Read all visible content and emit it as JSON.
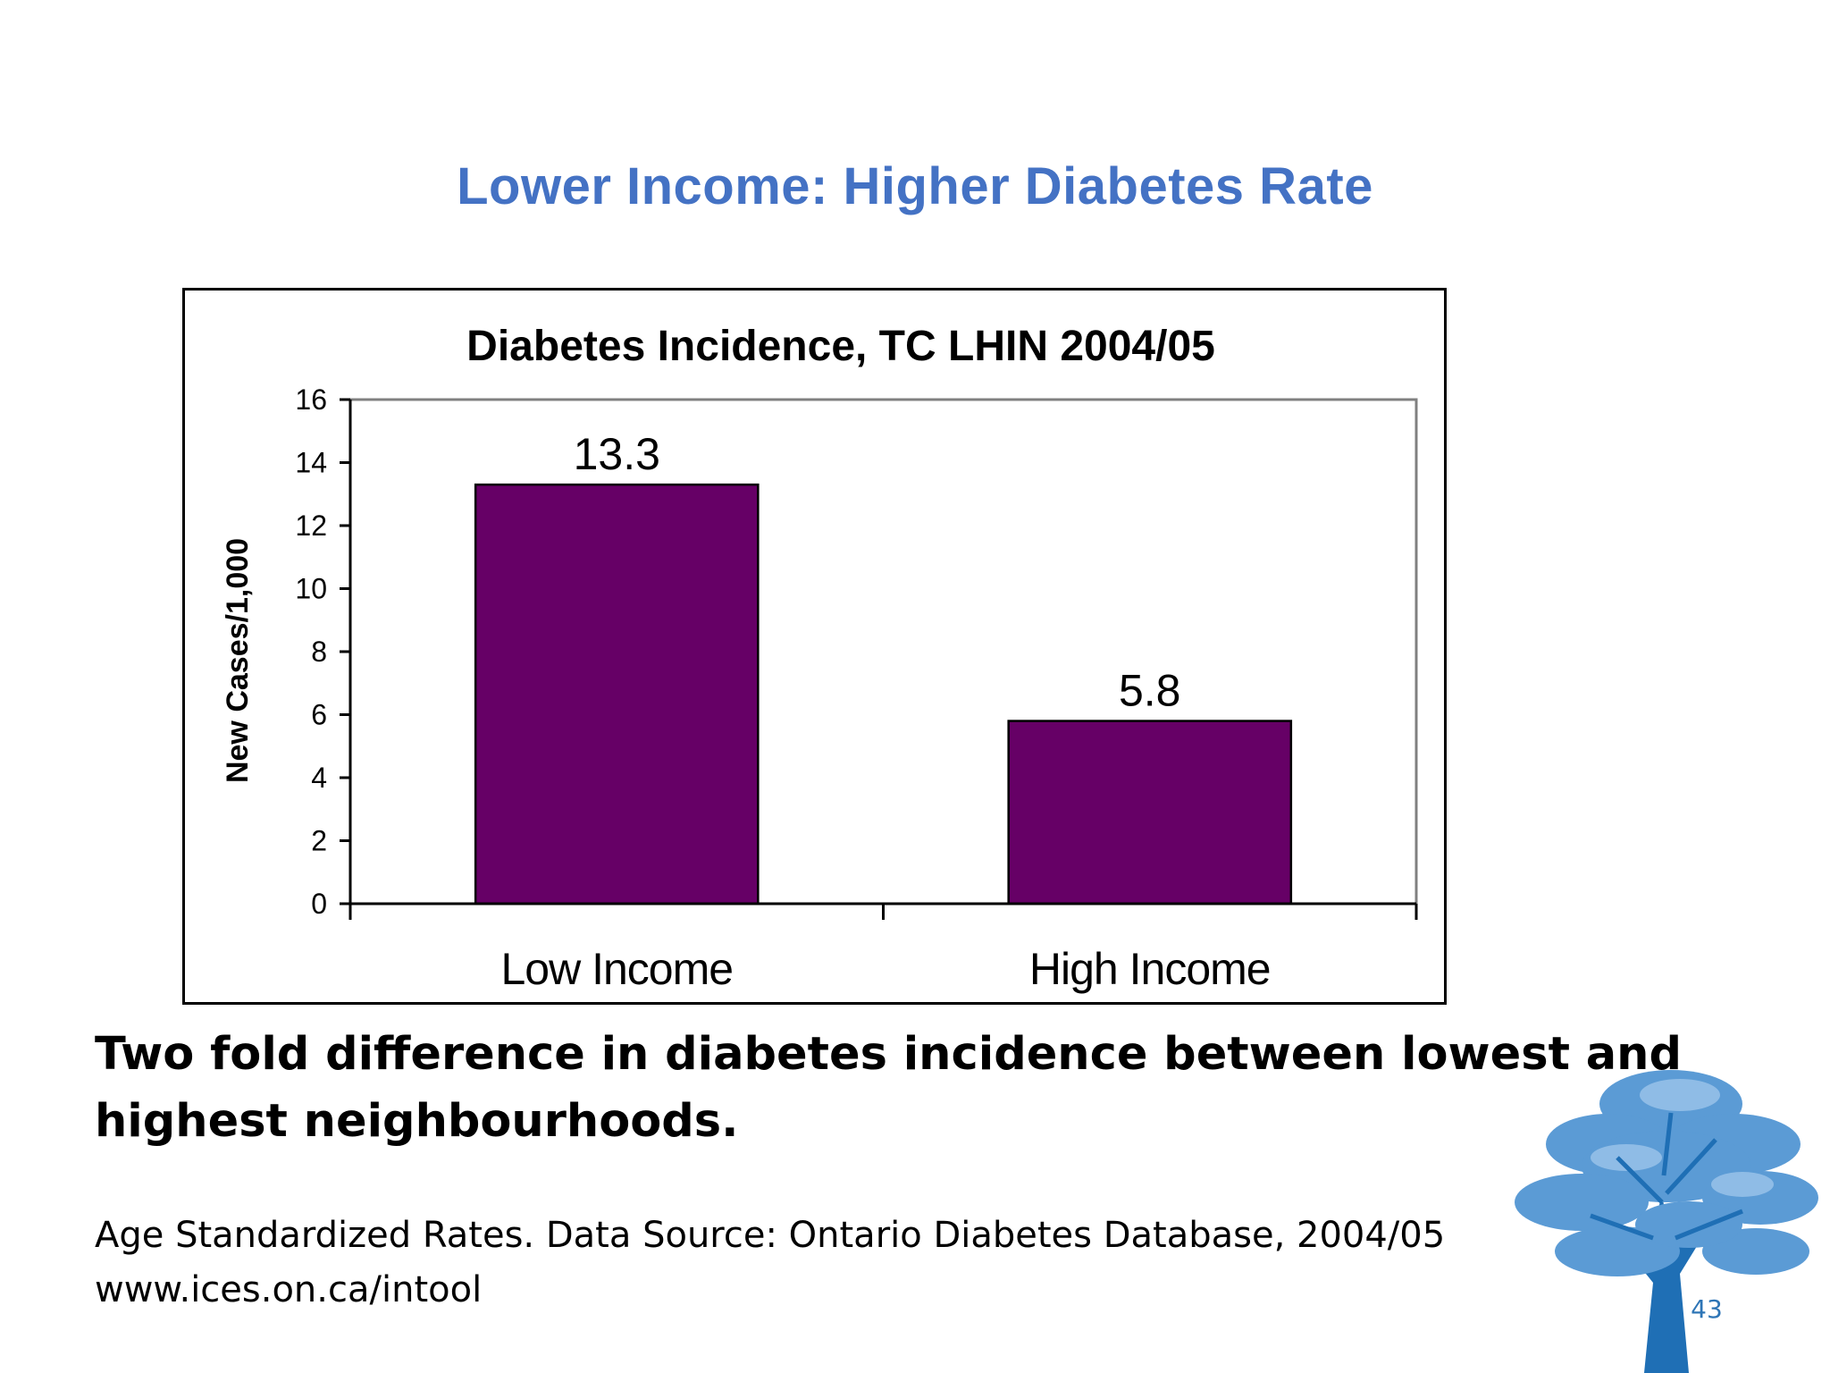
{
  "slide": {
    "title": "Lower Income: Higher Diabetes Rate",
    "caption": "Two fold difference in diabetes incidence between lowest and highest neighbourhoods.",
    "source_line1": "Age Standardized Rates. Data Source: Ontario Diabetes Database, 2004/05",
    "source_line2": "www.ices.on.ca/intool",
    "page_number": "43",
    "title_color": "#4472C4",
    "logo_icon": "tree-icon"
  },
  "chart_data": {
    "type": "bar",
    "title": "Diabetes  Incidence, TC LHIN 2004/05",
    "xlabel": "",
    "ylabel": "New Cases/1,000",
    "categories": [
      "Low Income",
      "High Income"
    ],
    "values": [
      13.3,
      5.8
    ],
    "data_labels": [
      "13.3",
      "5.8"
    ],
    "ylim": [
      0,
      16
    ],
    "yticks": [
      0,
      2,
      4,
      6,
      8,
      10,
      12,
      14,
      16
    ],
    "bar_color": "#660066",
    "grid": false,
    "legend": "none"
  }
}
